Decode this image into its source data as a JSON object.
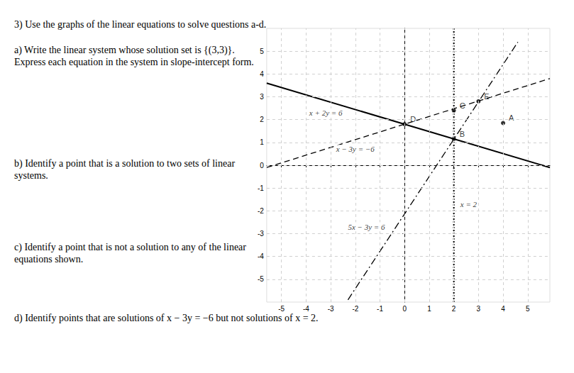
{
  "header": {
    "title": "3) Use the graphs of the linear equations to solve questions a-d."
  },
  "questions": [
    {
      "text": "a) Write the linear system whose solution set is {(3,3)}. Express each equation in the system in slope-intercept form."
    },
    {
      "text": "b) Identify a point that is a solution to two sets of linear systems."
    },
    {
      "text": "c) Identify a point that is not a solution to any of the linear equations shown."
    },
    {
      "text": "d) Identify points that are solutions of x − 3y = −6 but not solutions of x = 2."
    }
  ],
  "chart_data": {
    "type": "line",
    "xlim": [
      -5.6,
      5.9
    ],
    "ylim": [
      -6,
      6
    ],
    "xticks": [
      -5,
      -4,
      -3,
      -2,
      -1,
      0,
      1,
      2,
      3,
      4,
      5
    ],
    "yticks": [
      -5,
      -4,
      -3,
      -2,
      -1,
      0,
      1,
      2,
      3,
      4,
      5
    ],
    "grid": true,
    "series": [
      {
        "x": [
          -5.6,
          5.9
        ],
        "values": [
          3.6,
          -0.1
        ],
        "line_style": "solid",
        "color": "#000000"
      },
      {
        "x": [
          -5.6,
          5.9
        ],
        "values": [
          -0.1,
          3.8
        ],
        "line_style": "dashed",
        "color": "#000000"
      },
      {
        "x": [
          -2.3,
          4.6
        ],
        "values": [
          -5.9,
          5.4
        ],
        "line_style": "dashdot",
        "color": "#000000"
      },
      {
        "x": [
          2,
          2
        ],
        "values": [
          -6,
          6
        ],
        "line_style": "dotted",
        "color": "#000000"
      },
      {
        "type": "scatter",
        "x": [
          4,
          2,
          2,
          0,
          3
        ],
        "values": [
          1.85,
          1.15,
          2.4,
          1.8,
          2.8
        ],
        "labels": [
          "A",
          "B",
          "C",
          "D",
          "E"
        ],
        "color": "#000000",
        "marker": "circle"
      }
    ],
    "annotations": [
      {
        "text": "x + 2y = 6",
        "x": -3.2,
        "y": 2.3
      },
      {
        "text": "x − 3y = −6",
        "x": -2.0,
        "y": 0.7
      },
      {
        "text": "5x − 3y = 6",
        "x": -1.55,
        "y": -2.7
      },
      {
        "text": "x = 2",
        "x": 2.6,
        "y": -1.7
      }
    ]
  }
}
